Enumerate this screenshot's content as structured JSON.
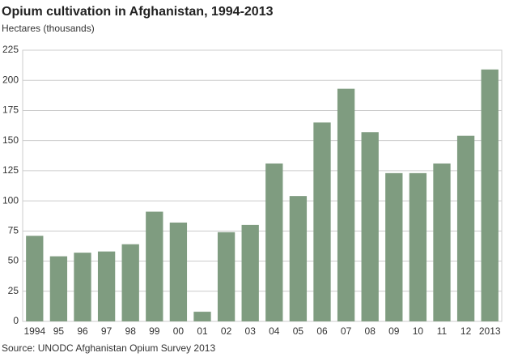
{
  "chart_data": {
    "type": "bar",
    "title": "Opium cultivation in Afghanistan, 1994-2013",
    "subtitle": "Hectares (thousands)",
    "source": "Source: UNODC Afghanistan Opium Survey 2013",
    "categories": [
      "1994",
      "95",
      "96",
      "97",
      "98",
      "99",
      "00",
      "01",
      "02",
      "03",
      "04",
      "05",
      "06",
      "07",
      "08",
      "09",
      "10",
      "11",
      "12",
      "2013"
    ],
    "values": [
      71,
      54,
      57,
      58,
      64,
      91,
      82,
      8,
      74,
      80,
      131,
      104,
      165,
      193,
      157,
      123,
      123,
      131,
      154,
      209
    ],
    "color": "#7f9c80",
    "ylim": [
      0,
      225
    ],
    "yticks": [
      0,
      25,
      50,
      75,
      100,
      125,
      150,
      175,
      200,
      225
    ],
    "grid": true
  }
}
